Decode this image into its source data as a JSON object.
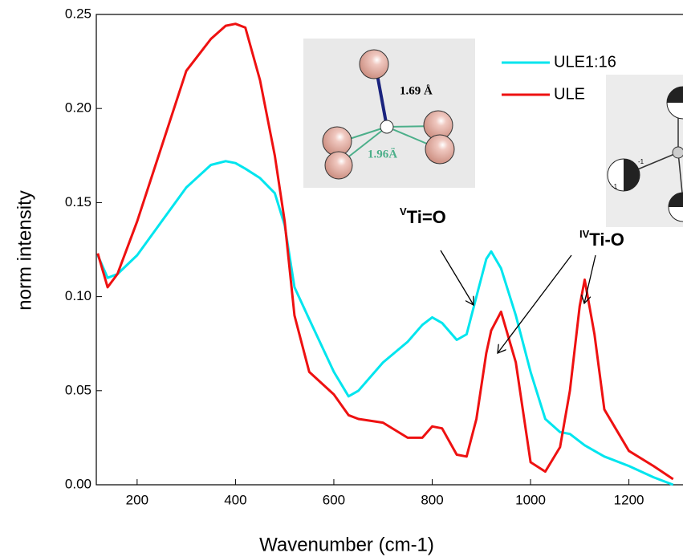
{
  "chart_data": {
    "type": "line",
    "x_label": "Wavenumber (cm-1)",
    "y_label": "norm intensity",
    "x": [
      120,
      140,
      160,
      200,
      250,
      300,
      350,
      380,
      400,
      420,
      450,
      480,
      500,
      520,
      550,
      600,
      630,
      650,
      700,
      750,
      780,
      800,
      820,
      850,
      870,
      890,
      910,
      920,
      940,
      970,
      1000,
      1030,
      1060,
      1080,
      1100,
      1110,
      1130,
      1150,
      1200,
      1250,
      1290
    ],
    "series": [
      {
        "name": "ULE1:16",
        "color": "#00e5ee",
        "values": [
          0.122,
          0.11,
          0.112,
          0.122,
          0.14,
          0.158,
          0.17,
          0.172,
          0.171,
          0.168,
          0.163,
          0.155,
          0.138,
          0.105,
          0.088,
          0.06,
          0.047,
          0.05,
          0.065,
          0.076,
          0.085,
          0.089,
          0.086,
          0.077,
          0.08,
          0.1,
          0.12,
          0.124,
          0.115,
          0.09,
          0.06,
          0.035,
          0.028,
          0.027,
          0.023,
          0.021,
          0.018,
          0.015,
          0.01,
          0.004,
          0.0
        ]
      },
      {
        "name": "ULE",
        "color": "#ee1111",
        "values": [
          0.123,
          0.105,
          0.112,
          0.14,
          0.18,
          0.22,
          0.237,
          0.244,
          0.245,
          0.243,
          0.215,
          0.175,
          0.14,
          0.09,
          0.06,
          0.048,
          0.037,
          0.035,
          0.033,
          0.025,
          0.025,
          0.031,
          0.03,
          0.016,
          0.015,
          0.035,
          0.07,
          0.082,
          0.092,
          0.065,
          0.012,
          0.007,
          0.02,
          0.05,
          0.095,
          0.109,
          0.08,
          0.04,
          0.018,
          0.01,
          0.003
        ]
      }
    ],
    "xlim": [
      117,
      1310
    ],
    "ylim": [
      0,
      0.25
    ],
    "xticks": [
      200,
      400,
      600,
      800,
      1000,
      1200
    ],
    "yticks": [
      {
        "value": 0,
        "label": "0.00"
      },
      {
        "value": 0.05,
        "label": "0.05"
      },
      {
        "value": 0.1,
        "label": "0.10"
      },
      {
        "value": 0.15,
        "label": "0.15"
      },
      {
        "value": 0.2,
        "label": "0.20"
      },
      {
        "value": 0.25,
        "label": "0.25"
      }
    ],
    "annotations": [
      {
        "sup": "V",
        "text": "Ti=O"
      },
      {
        "sup": "IV",
        "text": "Ti-O"
      }
    ],
    "inset_labels": [
      "1.69 Å",
      "1.96Ä",
      "-1",
      "-1"
    ],
    "legend": "upper right"
  }
}
